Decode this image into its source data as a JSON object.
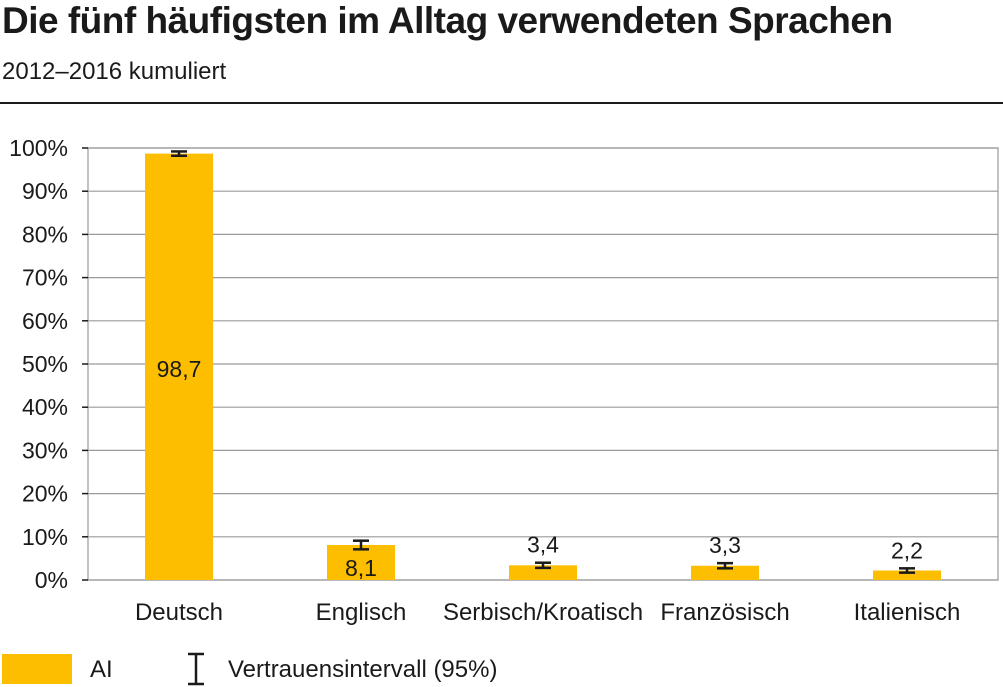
{
  "chart_data": {
    "type": "bar",
    "title": "Die fünf häufigsten im Alltag verwendeten Sprachen",
    "subtitle": "2012–2016 kumuliert",
    "categories": [
      "Deutsch",
      "Englisch",
      "Serbisch/Kroatisch",
      "Französisch",
      "Italienisch"
    ],
    "values": [
      98.7,
      8.1,
      3.4,
      3.3,
      2.2
    ],
    "value_labels": [
      "98,7",
      "8,1",
      "3,4",
      "3,3",
      "2,2"
    ],
    "ci_lower": [
      98.2,
      7.1,
      2.8,
      2.7,
      1.7
    ],
    "ci_upper": [
      99.2,
      9.1,
      4.0,
      3.9,
      2.7
    ],
    "ylim": [
      0,
      100
    ],
    "yticks": [
      0,
      10,
      20,
      30,
      40,
      50,
      60,
      70,
      80,
      90,
      100
    ],
    "ytick_labels": [
      "0%",
      "10%",
      "20%",
      "30%",
      "40%",
      "50%",
      "60%",
      "70%",
      "80%",
      "90%",
      "100%"
    ],
    "xlabel": "",
    "ylabel": "",
    "grid": true,
    "legend_position": "bottom-left",
    "legend": {
      "series_label": "AI",
      "ci_label": "Vertrauensintervall (95%)"
    },
    "colors": {
      "bar": "#FDBE00",
      "grid": "#9a9a9a",
      "text": "#1a1a1a"
    }
  }
}
